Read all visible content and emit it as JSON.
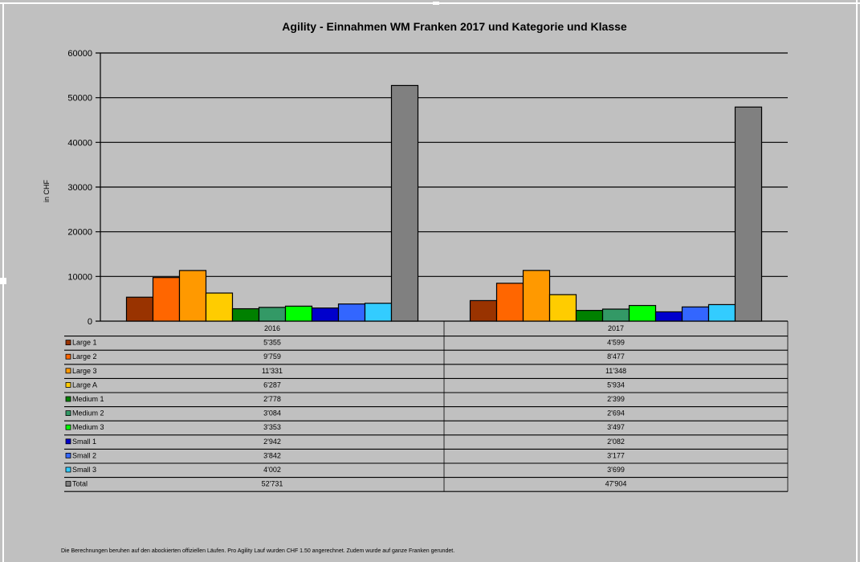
{
  "chart_data": {
    "type": "bar",
    "title": "Agility - Einnahmen WM Franken 2017 und Kategorie und Klasse",
    "ylabel": "in CHF",
    "xlabel": "",
    "ylim": [
      0,
      60000
    ],
    "yticks": [
      0,
      10000,
      20000,
      30000,
      40000,
      50000,
      60000
    ],
    "categories": [
      "2016",
      "2017"
    ],
    "grid": true,
    "legend": "data-table-left",
    "series": [
      {
        "name": "Large 1",
        "color": "#993300",
        "values": [
          5355,
          4599
        ],
        "labels": [
          "5'355",
          "4'599"
        ]
      },
      {
        "name": "Large 2",
        "color": "#ff6600",
        "values": [
          9759,
          8477
        ],
        "labels": [
          "9'759",
          "8'477"
        ]
      },
      {
        "name": "Large 3",
        "color": "#ff9900",
        "values": [
          11331,
          11348
        ],
        "labels": [
          "11'331",
          "11'348"
        ]
      },
      {
        "name": "Large A",
        "color": "#ffcc00",
        "values": [
          6287,
          5934
        ],
        "labels": [
          "6'287",
          "5'934"
        ]
      },
      {
        "name": "Medium 1",
        "color": "#008000",
        "values": [
          2778,
          2399
        ],
        "labels": [
          "2'778",
          "2'399"
        ]
      },
      {
        "name": "Medium 2",
        "color": "#339966",
        "values": [
          3084,
          2694
        ],
        "labels": [
          "3'084",
          "2'694"
        ]
      },
      {
        "name": "Medium 3",
        "color": "#00ff00",
        "values": [
          3353,
          3497
        ],
        "labels": [
          "3'353",
          "3'497"
        ]
      },
      {
        "name": "Small 1",
        "color": "#0000cc",
        "values": [
          2942,
          2082
        ],
        "labels": [
          "2'942",
          "2'082"
        ]
      },
      {
        "name": "Small 2",
        "color": "#3366ff",
        "values": [
          3842,
          3177
        ],
        "labels": [
          "3'842",
          "3'177"
        ]
      },
      {
        "name": "Small 3",
        "color": "#33ccff",
        "values": [
          4002,
          3699
        ],
        "labels": [
          "4'002",
          "3'699"
        ]
      },
      {
        "name": "Total",
        "color": "#808080",
        "values": [
          52731,
          47904
        ],
        "labels": [
          "52'731",
          "47'904"
        ]
      }
    ]
  },
  "footnote": "Die Berechnungen beruhen auf den abockierten offiziellen Läufen. Pro Agility Lauf wurden CHF 1.50 angerechnet. Zudem wurde auf ganze Franken gerundet."
}
